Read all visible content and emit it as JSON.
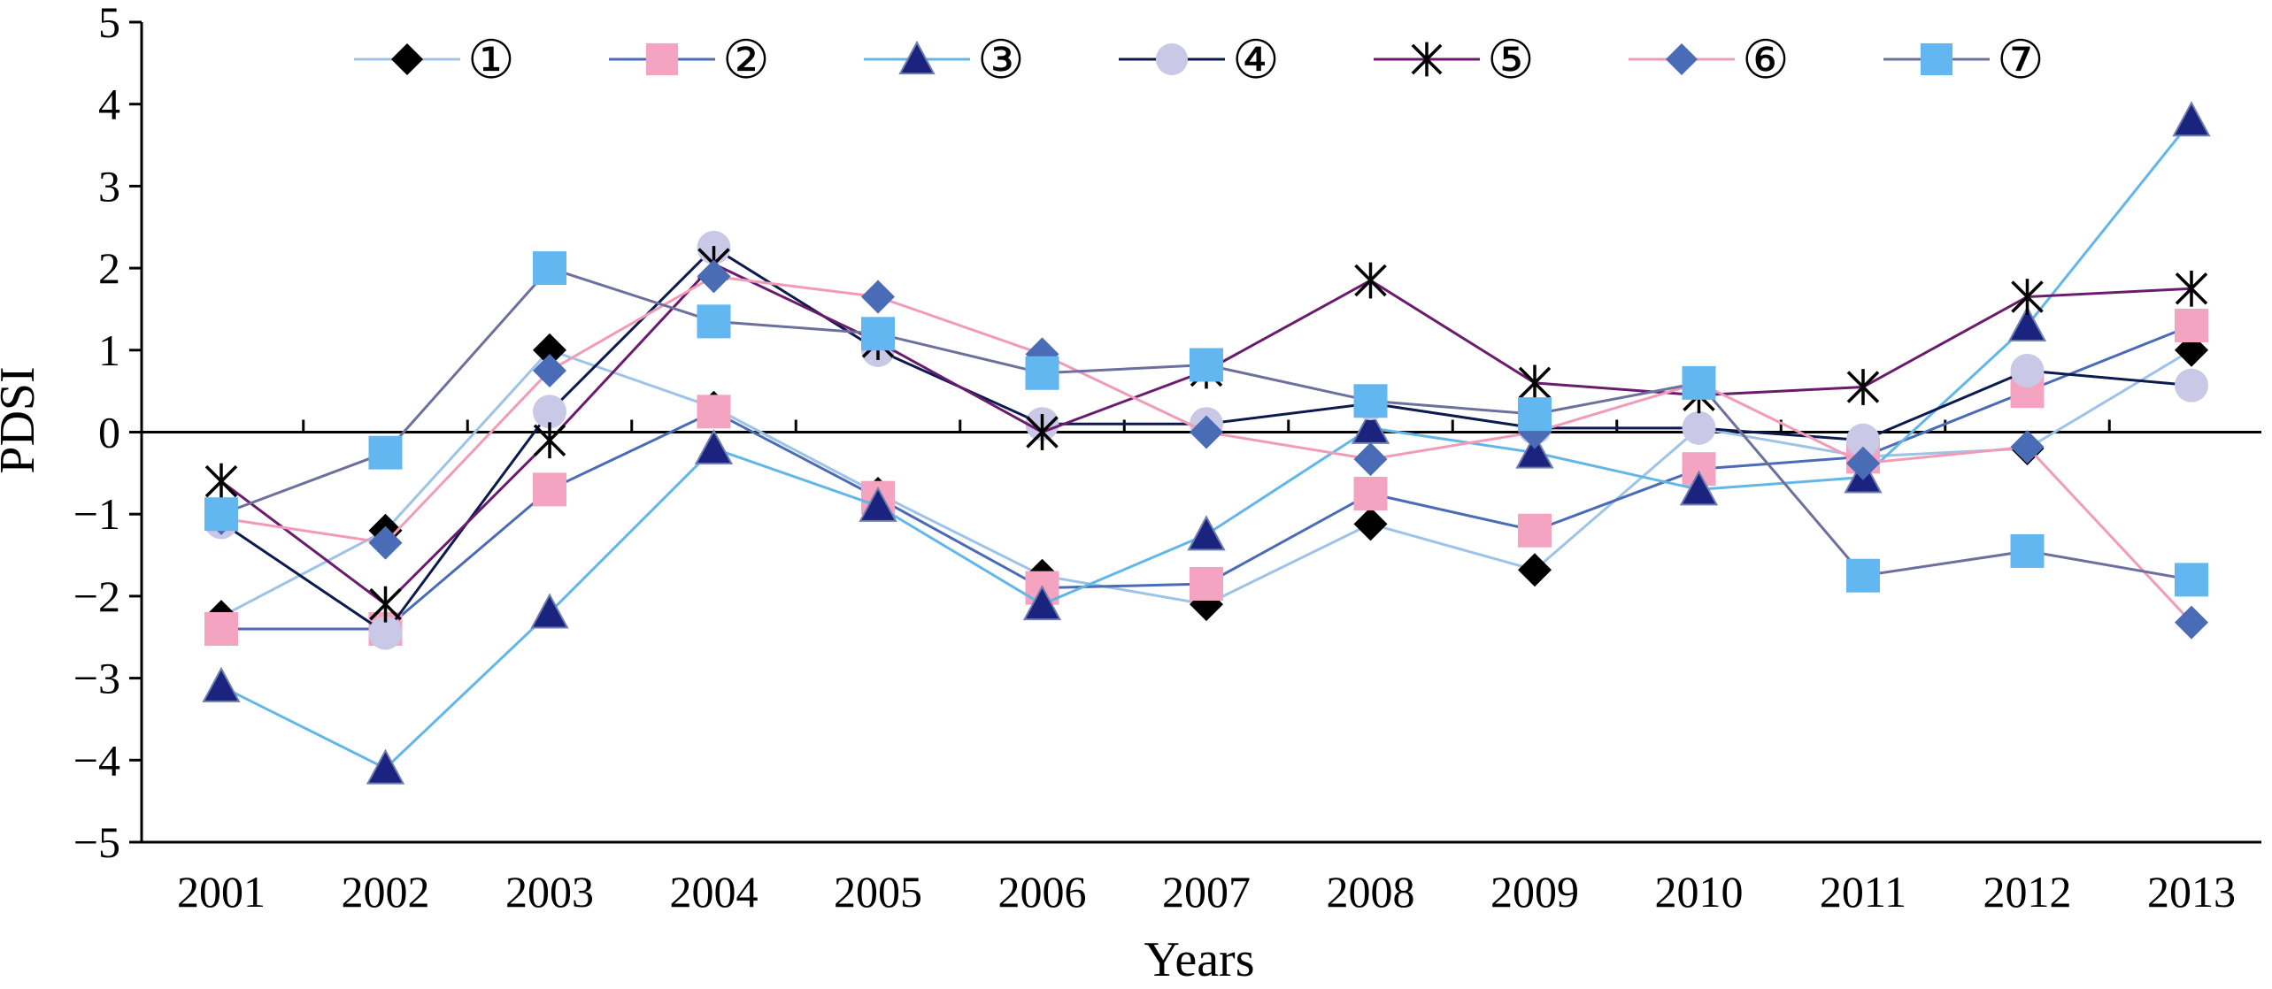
{
  "chart_data": {
    "type": "line",
    "title": "",
    "xlabel": "Years",
    "ylabel": "PDSI",
    "ylim": [
      -5,
      5
    ],
    "yticks": [
      -5,
      -4,
      -3,
      -2,
      -1,
      0,
      1,
      2,
      3,
      4,
      5
    ],
    "ytick_labels": [
      "−5",
      "−4",
      "−3",
      "−2",
      "−1",
      "0",
      "1",
      "2",
      "3",
      "4",
      "5"
    ],
    "categories": [
      "2001",
      "2002",
      "2003",
      "2004",
      "2005",
      "2006",
      "2007",
      "2008",
      "2009",
      "2010",
      "2011",
      "2012",
      "2013"
    ],
    "grid": false,
    "legend_position": "top",
    "series": [
      {
        "name": "①",
        "marker": "diamond",
        "line_color": "#9dc3e6",
        "marker_color": "#000000",
        "values": [
          -2.25,
          -1.2,
          1.0,
          0.3,
          -0.75,
          -1.75,
          -2.1,
          -1.12,
          -1.68,
          0.05,
          -0.3,
          -0.2,
          1.0
        ]
      },
      {
        "name": "②",
        "marker": "square",
        "line_color": "#4a6bb5",
        "marker_color": "#f4a3c0",
        "values": [
          -2.4,
          -2.4,
          -0.7,
          0.25,
          -0.8,
          -1.9,
          -1.85,
          -0.75,
          -1.2,
          -0.45,
          -0.3,
          0.5,
          1.3
        ]
      },
      {
        "name": "③",
        "marker": "triangle",
        "line_color": "#62b7e8",
        "marker_color": "#1a237e",
        "values": [
          -3.1,
          -4.1,
          -2.2,
          -0.2,
          -0.9,
          -2.1,
          -1.25,
          0.05,
          -0.25,
          -0.7,
          -0.55,
          1.3,
          3.8
        ]
      },
      {
        "name": "④",
        "marker": "circle",
        "line_color": "#0b1a4f",
        "marker_color": "#c9c8e6",
        "values": [
          -1.1,
          -2.45,
          0.25,
          2.25,
          1.0,
          0.1,
          0.1,
          0.35,
          0.05,
          0.05,
          -0.1,
          0.75,
          0.57
        ]
      },
      {
        "name": "⑤",
        "marker": "star",
        "line_color": "#6a1b6e",
        "marker_color": "#000000",
        "values": [
          -0.6,
          -2.1,
          -0.1,
          2.05,
          1.1,
          0.0,
          0.75,
          1.85,
          0.6,
          0.45,
          0.55,
          1.65,
          1.75
        ]
      },
      {
        "name": "⑥",
        "marker": "diamond",
        "line_color": "#f29bb8",
        "marker_color": "#4a6bb5",
        "values": [
          -1.05,
          -1.35,
          0.75,
          1.9,
          1.65,
          0.95,
          0.0,
          -0.33,
          0.0,
          0.6,
          -0.38,
          -0.18,
          -2.32
        ]
      },
      {
        "name": "⑦",
        "marker": "square",
        "line_color": "#6d6f9c",
        "marker_color": "#62b7f0",
        "values": [
          -1.0,
          -0.25,
          2.0,
          1.35,
          1.2,
          0.72,
          0.82,
          0.38,
          0.22,
          0.6,
          -1.75,
          -1.45,
          -1.8
        ]
      }
    ]
  }
}
